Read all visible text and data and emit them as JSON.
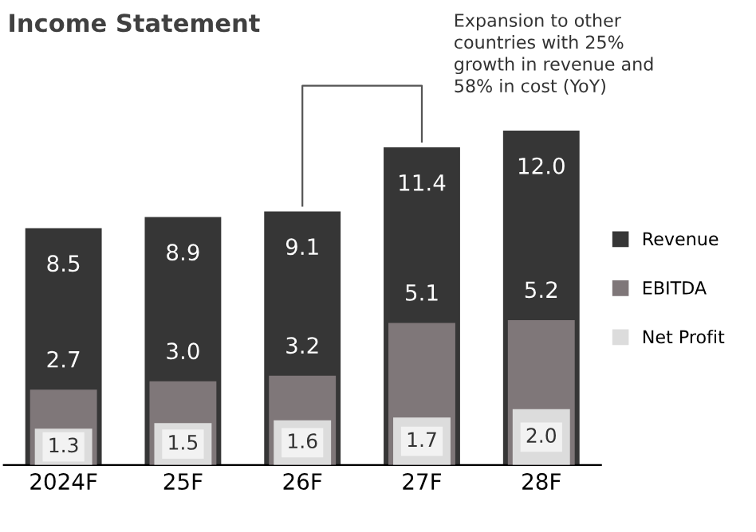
{
  "chart_data": {
    "type": "bar",
    "title": "Income Statement",
    "categories": [
      "2024F",
      "25F",
      "26F",
      "27F",
      "28F"
    ],
    "series": [
      {
        "name": "Revenue",
        "color": "#363636",
        "values": [
          8.5,
          8.9,
          9.1,
          11.4,
          12.0
        ],
        "value_labels": [
          "8.5",
          "8.9",
          "9.1",
          "11.4",
          "12.0"
        ]
      },
      {
        "name": "EBITDA",
        "color": "#7f7779",
        "values": [
          2.7,
          3.0,
          3.2,
          5.1,
          5.2
        ],
        "value_labels": [
          "2.7",
          "3.0",
          "3.2",
          "5.1",
          "5.2"
        ]
      },
      {
        "name": "Net Profit",
        "color": "#dcdcdc",
        "values": [
          1.3,
          1.5,
          1.6,
          1.7,
          2.0
        ],
        "value_labels": [
          "1.3",
          "1.5",
          "1.6",
          "1.7",
          "2.0"
        ]
      }
    ],
    "legend": "right",
    "annotations": [
      "Expansion to other\ncountries with 25%\ngrowth in revenue and\n58% in cost (YoY)"
    ]
  }
}
